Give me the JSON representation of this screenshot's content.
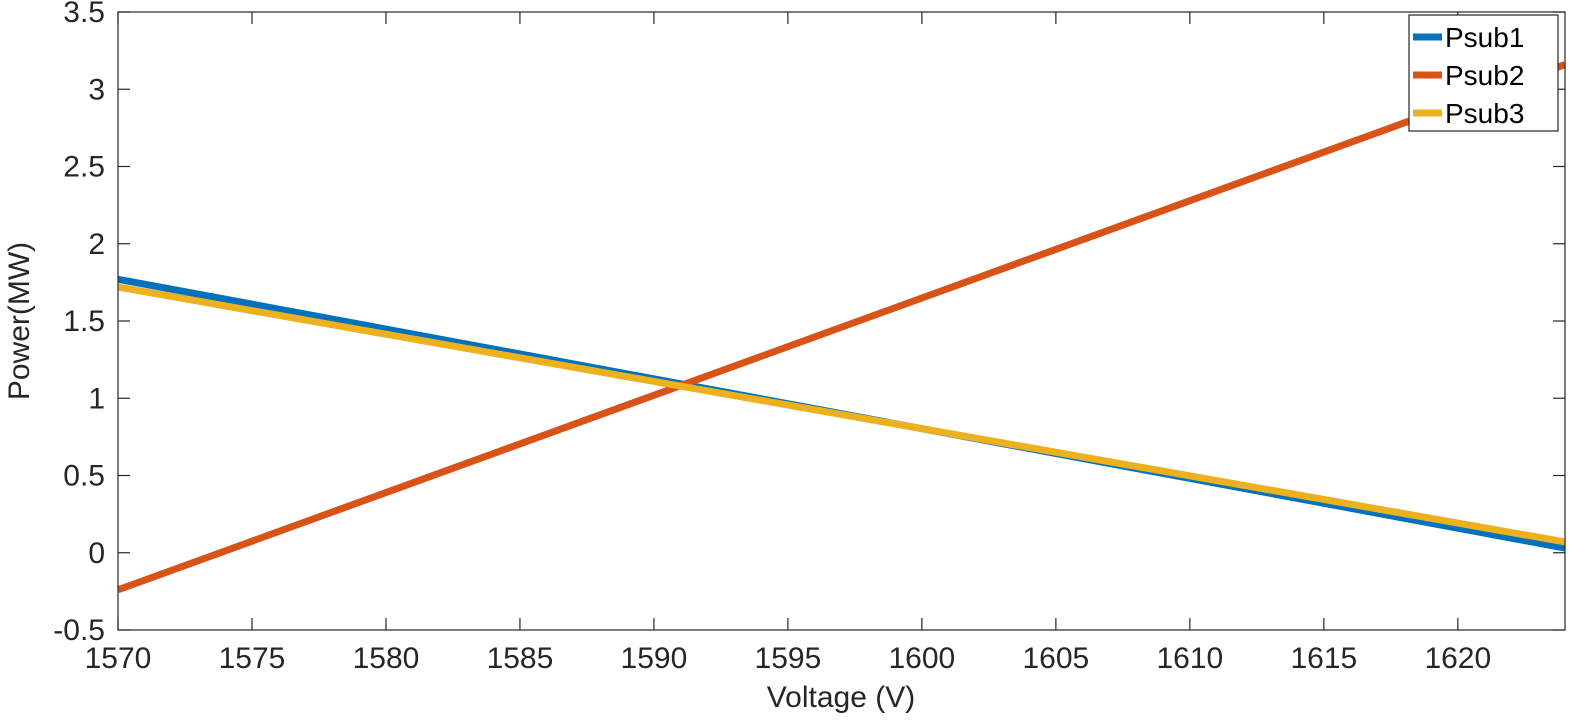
{
  "chart_data": {
    "type": "line",
    "title": "",
    "xlabel": "Voltage (V)",
    "ylabel": "Power(MW)",
    "xlim": [
      1570,
      1624
    ],
    "ylim": [
      -0.5,
      3.5
    ],
    "xticks": [
      "1570",
      "1575",
      "1580",
      "1585",
      "1590",
      "1595",
      "1600",
      "1605",
      "1610",
      "1615",
      "1620"
    ],
    "yticks": [
      "-0.5",
      "0",
      "0.5",
      "1",
      "1.5",
      "2",
      "2.5",
      "3",
      "3.5"
    ],
    "grid": false,
    "box": true,
    "legend_position": "top-right",
    "series": [
      {
        "name": "Psub1",
        "color": "#0072BD",
        "x": [
          1570,
          1624
        ],
        "y": [
          1.77,
          0.03
        ]
      },
      {
        "name": "Psub2",
        "color": "#D95319",
        "x": [
          1570,
          1624
        ],
        "y": [
          -0.24,
          3.16
        ]
      },
      {
        "name": "Psub3",
        "color": "#EDB120",
        "x": [
          1570,
          1624
        ],
        "y": [
          1.72,
          0.07
        ]
      }
    ]
  }
}
